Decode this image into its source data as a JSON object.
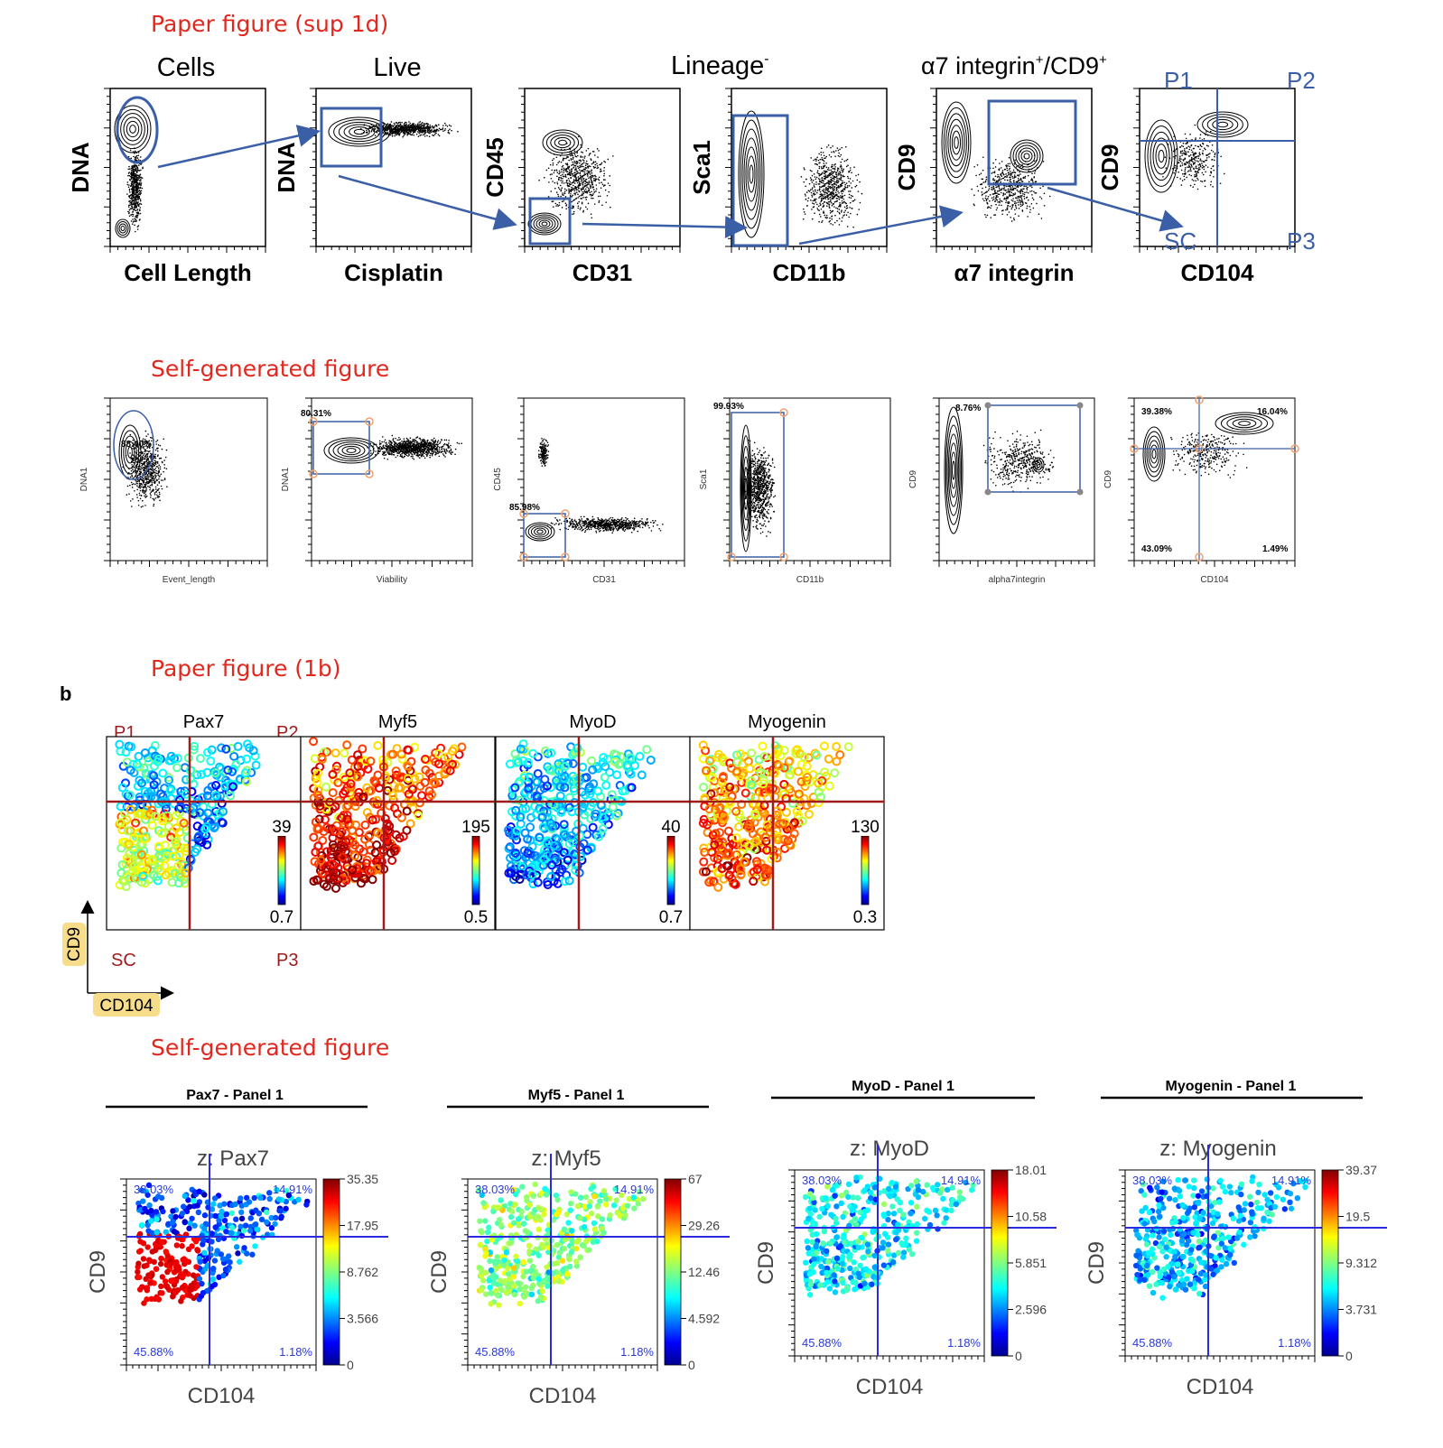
{
  "section_titles": {
    "paper_sup1d": "Paper figure (sup 1d)",
    "self1": "Self-generated figure",
    "paper_1b": "Paper figure (1b)",
    "self2": "Self-generated figure",
    "panel_letter": "b"
  },
  "colors": {
    "title_red": "#e0281e",
    "gate_blue": "#3b5fa6",
    "quad_red": "#a01c1c",
    "quad_blue": "#2a2ae0",
    "pct_blue": "#2a3ad8",
    "gate_handle": "#f0a070",
    "axis_highlight": "#f7dc8a"
  },
  "paper_gating": {
    "headers": {
      "cells": "Cells",
      "live": "Live",
      "lineage": "Lineage",
      "lineage_sup": "-",
      "alpha7": "α7 integrin",
      "alpha7_sup": "+",
      "alpha7_cd9": "/CD9",
      "alpha7_cd9_sup": "+"
    },
    "panels": [
      {
        "ylabel": "DNA",
        "xlabel": "Cell Length"
      },
      {
        "ylabel": "DNA",
        "xlabel": "Cisplatin"
      },
      {
        "ylabel": "CD45",
        "xlabel": "CD31"
      },
      {
        "ylabel": "Sca1",
        "xlabel": "CD11b"
      },
      {
        "ylabel": "CD9",
        "xlabel": "α7 integrin"
      },
      {
        "ylabel": "CD9",
        "xlabel": "CD104"
      }
    ],
    "quadrants": {
      "p1": "P1",
      "p2": "P2",
      "sc": "SC",
      "p3": "P3"
    }
  },
  "self_gating": {
    "panels": [
      {
        "ylabel": "DNA1",
        "xlabel": "Event_length",
        "gate_pct": "88.40%"
      },
      {
        "ylabel": "DNA1",
        "xlabel": "Viability",
        "gate_pct": "80.31%"
      },
      {
        "ylabel": "CD45",
        "xlabel": "CD31",
        "gate_pct": "85.98%"
      },
      {
        "ylabel": "Sca1",
        "xlabel": "CD11b",
        "gate_pct": "99.93%"
      },
      {
        "ylabel": "CD9",
        "xlabel": "alpha7integrin",
        "gate_pct": "8.76%"
      },
      {
        "ylabel": "CD9",
        "xlabel": "CD104",
        "quads": [
          "39.38%",
          "16.04%",
          "43.09%",
          "1.49%"
        ]
      }
    ]
  },
  "paper_1b": {
    "quadrant_labels": {
      "p1": "P1",
      "p2": "P2",
      "sc": "SC",
      "p3": "P3"
    },
    "panels": [
      {
        "marker": "Pax7",
        "max": "39",
        "min": "0.7"
      },
      {
        "marker": "Myf5",
        "max": "195",
        "min": "0.5"
      },
      {
        "marker": "MyoD",
        "max": "40",
        "min": "0.7"
      },
      {
        "marker": "Myogenin",
        "max": "130",
        "min": "0.3"
      }
    ],
    "axis_y": "CD9",
    "axis_x": "CD104"
  },
  "self_1b": {
    "panels": [
      {
        "header": "Pax7 - Panel 1",
        "z": "z: Pax7",
        "ticks": [
          "35.35",
          "17.95",
          "8.762",
          "3.566",
          "0"
        ]
      },
      {
        "header": "Myf5 - Panel 1",
        "z": "z: Myf5",
        "ticks": [
          "67",
          "29.26",
          "12.46",
          "4.592",
          "0"
        ]
      },
      {
        "header": "MyoD - Panel 1",
        "z": "z: MyoD",
        "ticks": [
          "18.01",
          "10.58",
          "5.851",
          "2.596",
          "0"
        ]
      },
      {
        "header": "Myogenin - Panel 1",
        "z": "z: Myogenin",
        "ticks": [
          "39.37",
          "19.5",
          "9.312",
          "3.731",
          "0"
        ]
      }
    ],
    "quads": [
      "38.03%",
      "14.91%",
      "45.88%",
      "1.18%"
    ],
    "ylabel": "CD9",
    "xlabel": "CD104"
  }
}
